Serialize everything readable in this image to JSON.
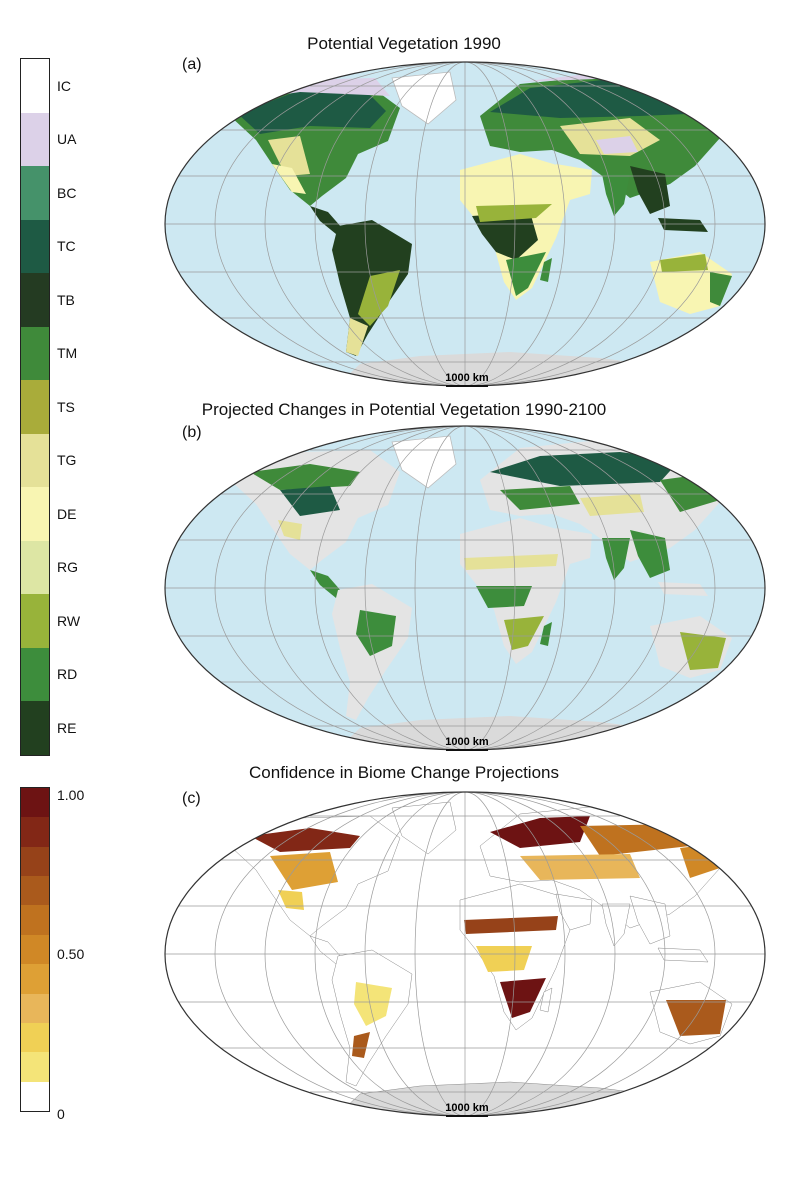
{
  "biome_legend": [
    {
      "code": "IC",
      "color": "#ffffff"
    },
    {
      "code": "UA",
      "color": "#dcd1e8"
    },
    {
      "code": "BC",
      "color": "#45926a"
    },
    {
      "code": "TC",
      "color": "#1e5a44"
    },
    {
      "code": "TB",
      "color": "#243b22"
    },
    {
      "code": "TM",
      "color": "#3f8a3a"
    },
    {
      "code": "TS",
      "color": "#a9ac3a"
    },
    {
      "code": "TG",
      "color": "#e5e198"
    },
    {
      "code": "DE",
      "color": "#f8f5b2"
    },
    {
      "code": "RG",
      "color": "#dde6a4"
    },
    {
      "code": "RW",
      "color": "#98b33a"
    },
    {
      "code": "RD",
      "color": "#3d8d3c"
    },
    {
      "code": "RE",
      "color": "#22401f"
    }
  ],
  "confidence_legend": {
    "colors": [
      "#6d1313",
      "#822716",
      "#964219",
      "#aa5a1c",
      "#bf721f",
      "#d08826",
      "#dea035",
      "#e8b65a",
      "#f0d055",
      "#f4e478",
      "#ffffff"
    ],
    "tick_labels": {
      "top": "1.00",
      "mid": "0.50",
      "bottom": "0"
    }
  },
  "panels": [
    {
      "letter": "(a)",
      "title": "Potential Vegetation 1990",
      "scale": "1000 km"
    },
    {
      "letter": "(b)",
      "title": "Projected Changes in Potential Vegetation 1990-2100",
      "scale": "1000 km"
    },
    {
      "letter": "(c)",
      "title": "Confidence in Biome Change Projections",
      "scale": "1000 km"
    }
  ],
  "colors": {
    "ocean": "#cde8f2",
    "land_base": "#e4e4e4",
    "antarctica": "#dadada",
    "graticule": "#9a9a9a"
  }
}
